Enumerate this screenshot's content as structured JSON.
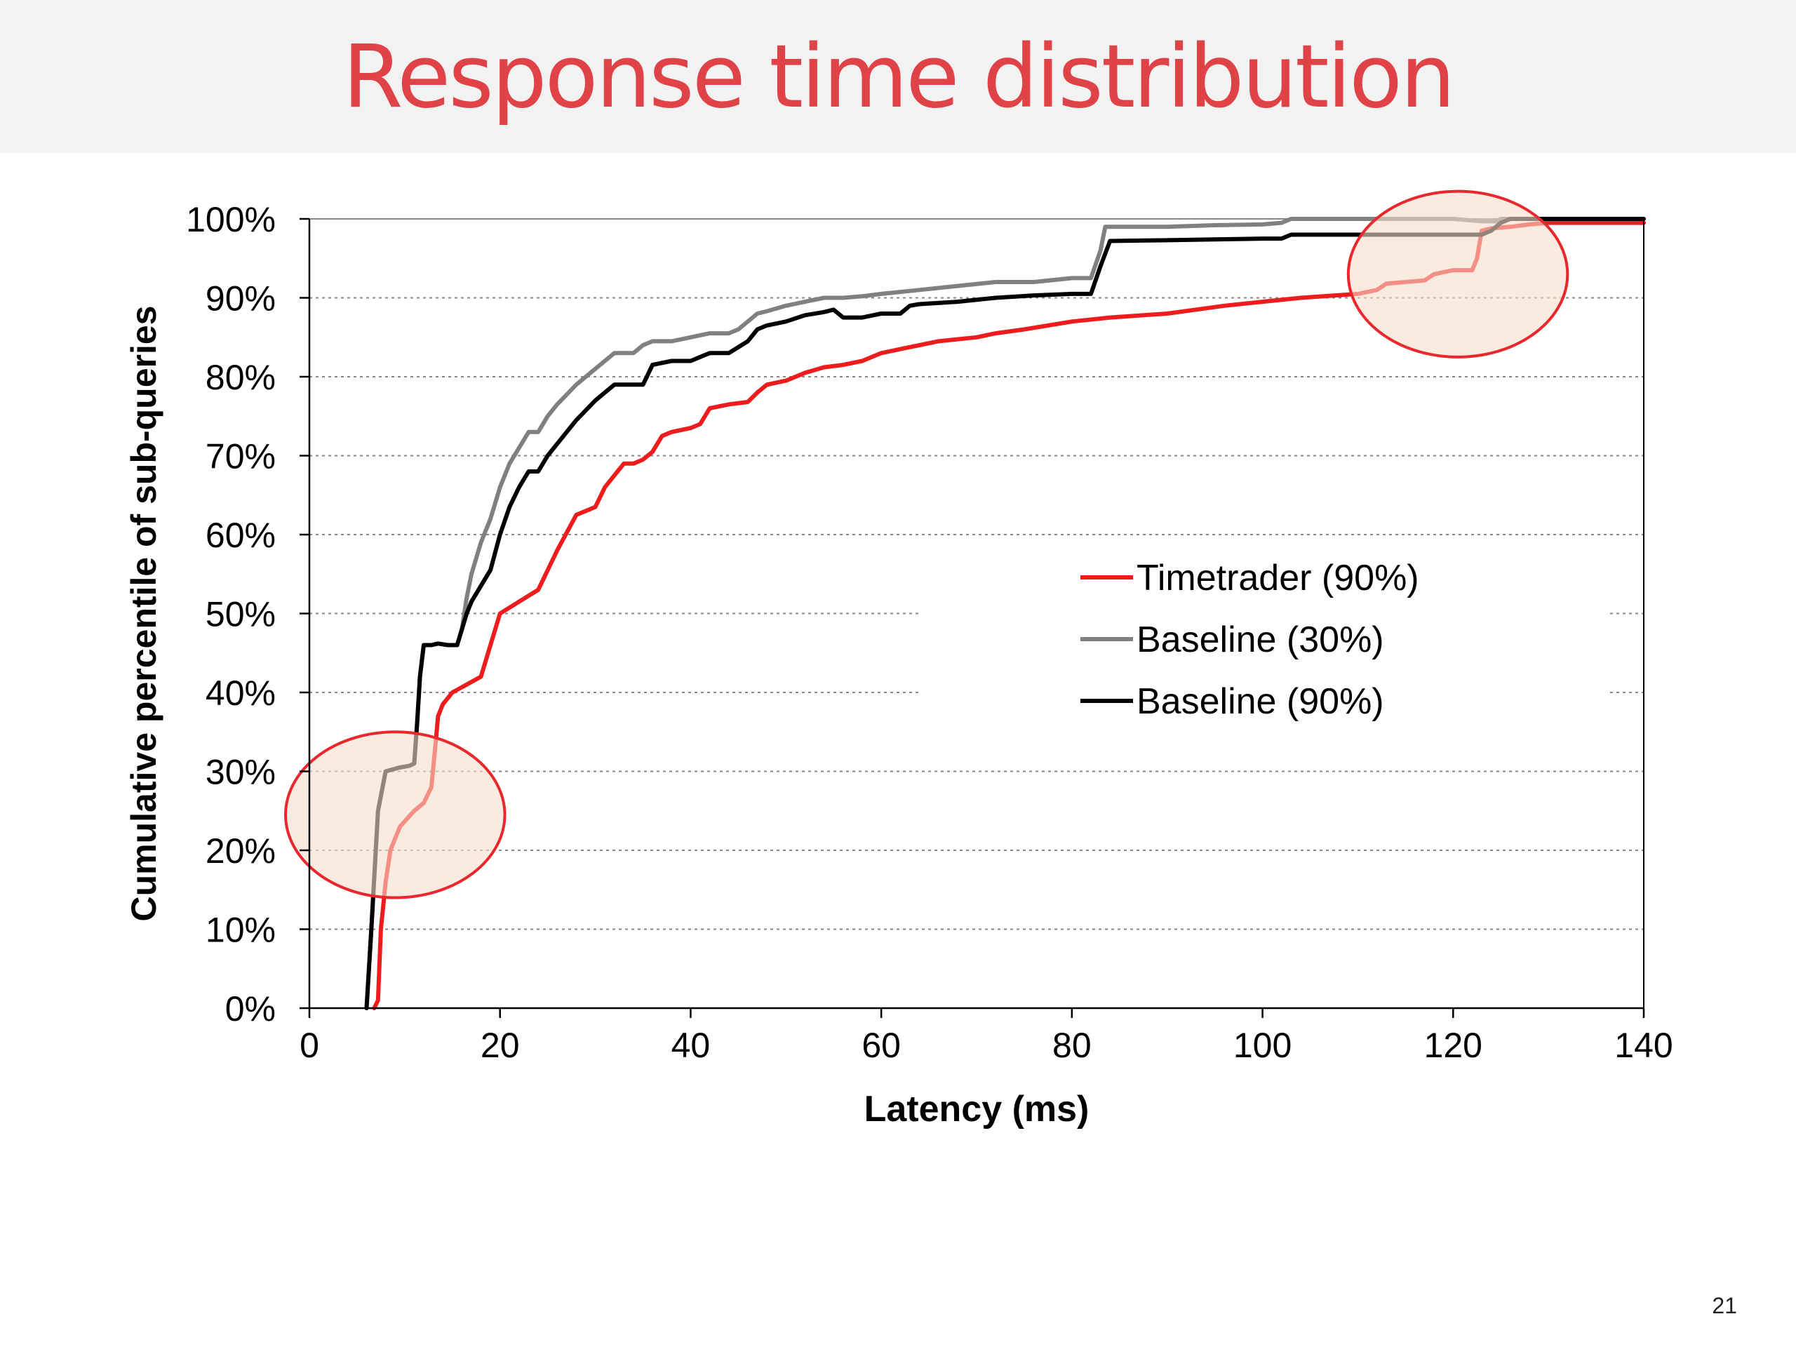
{
  "slide": {
    "title": "Response time distribution",
    "page_number": "21"
  },
  "colors": {
    "title": "#e04347",
    "title_band": "#f2f2f2",
    "highlight_fill": "#f9dccb",
    "highlight_stroke": "#e8282d"
  },
  "chart_data": {
    "type": "line",
    "xlabel": "Latency (ms)",
    "ylabel": "Cumulative percentile of sub-queries",
    "xlim": [
      0,
      140
    ],
    "ylim": [
      0,
      100
    ],
    "xticks": [
      0,
      20,
      40,
      60,
      80,
      100,
      120,
      140
    ],
    "yticks": [
      0,
      10,
      20,
      30,
      40,
      50,
      60,
      70,
      80,
      90,
      100
    ],
    "xtick_labels": [
      "0",
      "20",
      "40",
      "60",
      "80",
      "100",
      "120",
      "140"
    ],
    "ytick_labels": [
      "0%",
      "10%",
      "20%",
      "30%",
      "40%",
      "50%",
      "60%",
      "70%",
      "80%",
      "90%",
      "100%"
    ],
    "grid": "horizontal dotted",
    "legend_position": "center-right",
    "series": [
      {
        "name": "Timetrader (90%)",
        "color": "#ee1c1c",
        "x": [
          6.8,
          7.2,
          7.5,
          8.0,
          8.5,
          9.5,
          11,
          12,
          12.8,
          13.2,
          13.5,
          14,
          15,
          16.5,
          18,
          19,
          20,
          22,
          24,
          26,
          28,
          29,
          30,
          31,
          32,
          33,
          34,
          35,
          36,
          37,
          38,
          40,
          41,
          42,
          44,
          46,
          47,
          48,
          50,
          52,
          54,
          56,
          58,
          60,
          62,
          64,
          66,
          70,
          72,
          75,
          80,
          84,
          90,
          96,
          100,
          104,
          110,
          112,
          113,
          115,
          117,
          118,
          120,
          122,
          122.5,
          123,
          124,
          126,
          128,
          130,
          140
        ],
        "y": [
          0,
          1,
          10,
          16,
          20,
          23,
          25,
          26,
          28,
          33,
          37,
          38.5,
          40,
          41,
          42,
          46,
          50,
          51.5,
          53,
          58,
          62.5,
          63,
          63.5,
          66,
          67.5,
          69,
          69,
          69.5,
          70.5,
          72.5,
          73,
          73.5,
          74,
          76,
          76.5,
          76.8,
          78,
          79,
          79.5,
          80.5,
          81.2,
          81.5,
          82,
          83,
          83.5,
          84,
          84.5,
          85,
          85.5,
          86,
          87,
          87.5,
          88,
          89,
          89.5,
          90,
          90.5,
          91,
          91.8,
          92,
          92.2,
          93,
          93.5,
          93.5,
          95,
          98.5,
          98.8,
          99,
          99.3,
          99.5,
          99.5
        ]
      },
      {
        "name": "Baseline (30%)",
        "color": "#808080",
        "x": [
          6.0,
          6.5,
          7.2,
          8.0,
          9.5,
          10.5,
          11,
          11.3,
          11.6,
          12.0,
          12.8,
          13.5,
          14.5,
          15.5,
          16,
          16.5,
          17,
          18,
          19,
          20,
          21,
          22,
          23,
          24,
          25,
          26,
          28,
          30,
          32,
          34,
          35,
          36,
          38,
          40,
          42,
          44,
          45,
          46,
          47,
          48,
          50,
          52,
          54,
          56,
          58,
          60,
          64,
          68,
          72,
          76,
          80,
          82,
          83,
          83.5,
          84,
          90,
          95,
          100,
          102,
          103,
          108,
          115,
          120,
          123,
          124,
          124.5,
          125,
          126,
          130,
          140
        ],
        "y": [
          0,
          10,
          25,
          30,
          30.5,
          30.7,
          31,
          36,
          42,
          46,
          46,
          46.2,
          46,
          46,
          48,
          52,
          55,
          59,
          62,
          66,
          69,
          71,
          73,
          73,
          75,
          76.5,
          79,
          81,
          83,
          83,
          84,
          84.5,
          84.5,
          85,
          85.5,
          85.5,
          86,
          87,
          88,
          88.3,
          89,
          89.5,
          90,
          90,
          90.2,
          90.5,
          91,
          91.5,
          92,
          92,
          92.5,
          92.5,
          96,
          99,
          99,
          99,
          99.2,
          99.3,
          99.5,
          100,
          100,
          100,
          100,
          99.7,
          99.7,
          99.7,
          100,
          100,
          100,
          100
        ]
      },
      {
        "name": "Baseline (90%)",
        "color": "#000000",
        "x": [
          6.0,
          6.5,
          7.2,
          8.0,
          9.5,
          10.5,
          11,
          11.3,
          11.6,
          12.0,
          12.8,
          13.5,
          14.5,
          15.5,
          16,
          16.5,
          17,
          18,
          19,
          20,
          21,
          22,
          23,
          24,
          25,
          26,
          28,
          30,
          32,
          34,
          35,
          36,
          38,
          40,
          42,
          44,
          46,
          47,
          48,
          50,
          52,
          54,
          55,
          56,
          58,
          60,
          62,
          63,
          64,
          68,
          72,
          76,
          80,
          82,
          83,
          84,
          90,
          95,
          100,
          102,
          103,
          108,
          115,
          120,
          122,
          123,
          124,
          125,
          126,
          130,
          140
        ],
        "y": [
          0,
          10,
          25,
          30,
          30.5,
          30.7,
          31,
          36,
          42,
          46,
          46,
          46.2,
          46,
          46,
          48,
          50,
          51.5,
          53.5,
          55.5,
          60,
          63.5,
          66,
          68,
          68,
          70,
          71.5,
          74.5,
          77,
          79,
          79,
          79,
          81.5,
          82,
          82,
          83,
          83,
          84.5,
          86,
          86.5,
          87,
          87.8,
          88.2,
          88.5,
          87.5,
          87.5,
          88,
          88,
          89,
          89.2,
          89.5,
          90,
          90.3,
          90.5,
          90.5,
          94,
          97.2,
          97.3,
          97.4,
          97.5,
          97.5,
          98,
          98,
          98,
          98,
          98,
          98,
          98.5,
          99.5,
          100,
          100,
          100
        ]
      }
    ],
    "annotations": [
      {
        "type": "ellipse",
        "center": [
          9,
          24.5
        ],
        "x_span": [
          -3,
          20
        ],
        "y_span": [
          14,
          35
        ]
      },
      {
        "type": "ellipse",
        "center": [
          120.5,
          93
        ],
        "x_span": [
          109,
          132
        ],
        "y_span": [
          82.5,
          103.5
        ]
      }
    ]
  }
}
